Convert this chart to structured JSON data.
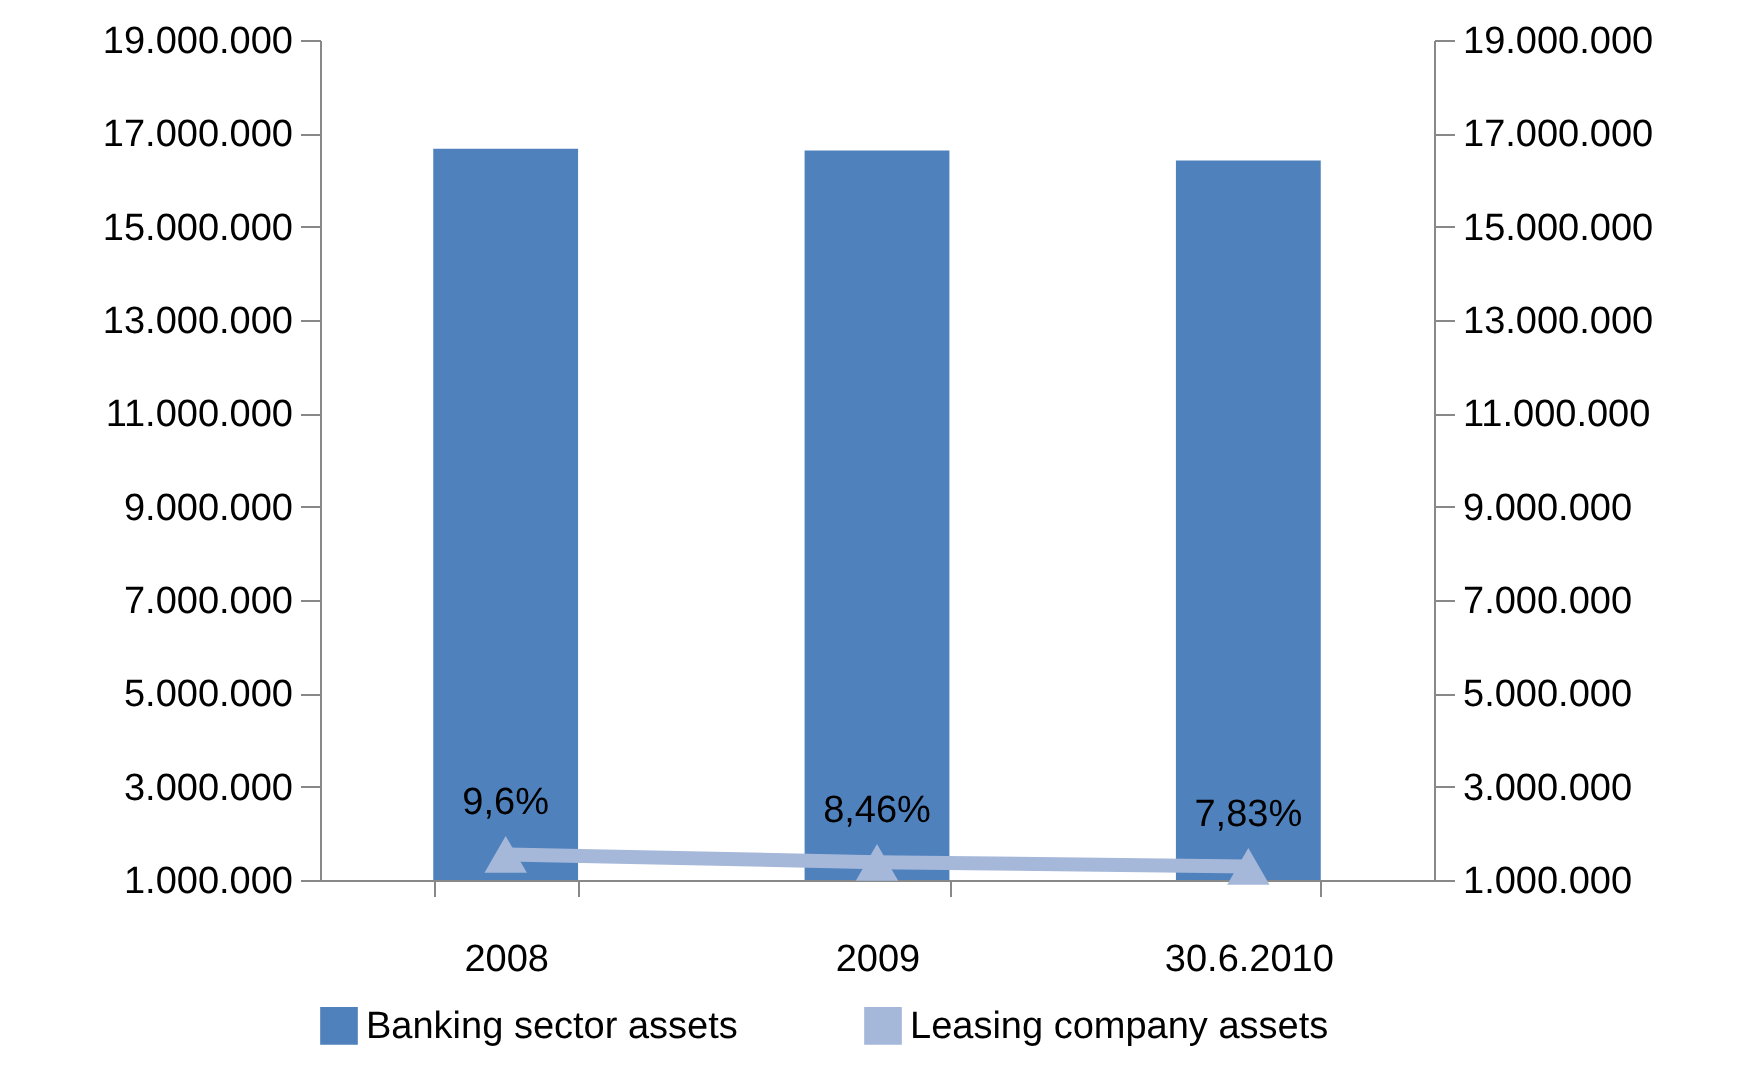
{
  "chart_data": {
    "type": "bar",
    "categories": [
      "2008",
      "2009",
      "30.6.2010"
    ],
    "series": [
      {
        "name": "Banking sector assets",
        "color": "#4f81bd",
        "values": [
          16670000,
          16630000,
          16420000
        ]
      },
      {
        "name": "Leasing company assets",
        "type": "line",
        "axis": "y2",
        "color": "#a5b8d9",
        "values": [
          1550000,
          1380000,
          1290000
        ],
        "marker": "triangle"
      }
    ],
    "annotations": [
      {
        "text": "9,6%",
        "x": "2008",
        "y": 1550000
      },
      {
        "text": "8,46%",
        "x": "2009",
        "y": 1380000
      },
      {
        "text": "7,83%",
        "x": "30.6.2010",
        "y": 1290000
      }
    ],
    "ylim": [
      1000000,
      19000000
    ],
    "yticks": [
      {
        "value": 1000000,
        "label": "1.000.000"
      },
      {
        "value": 3000000,
        "label": "3.000.000"
      },
      {
        "value": 5000000,
        "label": "5.000.000"
      },
      {
        "value": 7000000,
        "label": "7.000.000"
      },
      {
        "value": 9000000,
        "label": "9.000.000"
      },
      {
        "value": 11000000,
        "label": "11.000.000"
      },
      {
        "value": 13000000,
        "label": "13.000.000"
      },
      {
        "value": 15000000,
        "label": "15.000.000"
      },
      {
        "value": 17000000,
        "label": "17.000.000"
      },
      {
        "value": 19000000,
        "label": "19.000.000"
      }
    ],
    "y2lim": [
      1000000,
      19000000
    ],
    "y2ticks": [
      {
        "value": 1000000,
        "label": "1.000.000"
      },
      {
        "value": 3000000,
        "label": "3.000.000"
      },
      {
        "value": 5000000,
        "label": "5.000.000"
      },
      {
        "value": 7000000,
        "label": "7.000.000"
      },
      {
        "value": 9000000,
        "label": "9.000.000"
      },
      {
        "value": 11000000,
        "label": "11.000.000"
      },
      {
        "value": 13000000,
        "label": "13.000.000"
      },
      {
        "value": 15000000,
        "label": "15.000.000"
      },
      {
        "value": 17000000,
        "label": "17.000.000"
      },
      {
        "value": 19000000,
        "label": "19.000.000"
      }
    ],
    "legend": "bottom"
  }
}
